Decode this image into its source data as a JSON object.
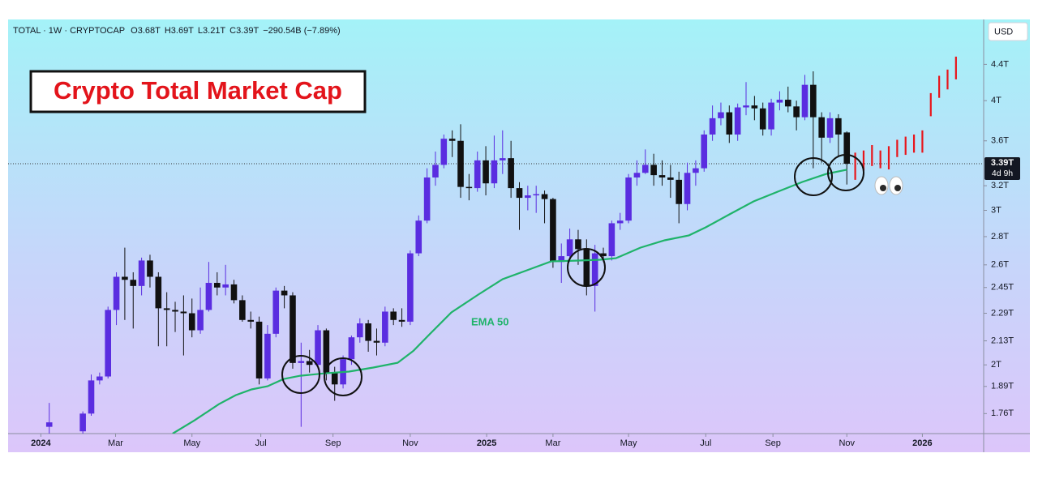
{
  "chart_data": {
    "type": "candlestick",
    "title": "Crypto Total Market Cap",
    "header": [
      "TOTAL · 1W · CRYPTOCAP",
      "O3.68T",
      "H3.69T",
      "L3.21T",
      "C3.39T",
      "−290.54B (−7.89%)"
    ],
    "currency": "USD",
    "up_color": "#5a2de0",
    "down_color": "#111111",
    "log": true,
    "ylim": [
      1.67,
      4.95
    ],
    "yticks": [
      {
        "value": 1.76,
        "label": "1.76T"
      },
      {
        "value": 1.89,
        "label": "1.89T"
      },
      {
        "value": 2,
        "label": "2T"
      },
      {
        "value": 2.13,
        "label": "2.13T"
      },
      {
        "value": 2.29,
        "label": "2.29T"
      },
      {
        "value": 2.45,
        "label": "2.45T"
      },
      {
        "value": 2.6,
        "label": "2.6T"
      },
      {
        "value": 2.8,
        "label": "2.8T"
      },
      {
        "value": 3,
        "label": "3T"
      },
      {
        "value": 3.2,
        "label": "3.2T"
      },
      {
        "value": 3.6,
        "label": "3.6T"
      },
      {
        "value": 4,
        "label": "4T"
      },
      {
        "value": 4.4,
        "label": "4.4T"
      }
    ],
    "xlim": [
      -3.9,
      112.3
    ],
    "xticks": [
      {
        "value": 0,
        "label": "2024"
      },
      {
        "value": 8.9,
        "label": "Mar"
      },
      {
        "value": 18.0,
        "label": "May"
      },
      {
        "value": 26.2,
        "label": "Jul"
      },
      {
        "value": 34.8,
        "label": "Sep"
      },
      {
        "value": 44.0,
        "label": "Nov"
      },
      {
        "value": 53.1,
        "label": "2025"
      },
      {
        "value": 61.0,
        "label": "Mar"
      },
      {
        "value": 70.0,
        "label": "May"
      },
      {
        "value": 79.2,
        "label": "Jul"
      },
      {
        "value": 87.2,
        "label": "Sep"
      },
      {
        "value": 96.0,
        "label": "Nov"
      },
      {
        "value": 105.0,
        "label": "2026"
      }
    ],
    "x": [
      1,
      5,
      6,
      7,
      8,
      9,
      10,
      11,
      12,
      13,
      14,
      15,
      16,
      17,
      18,
      19,
      20,
      21,
      22,
      23,
      24,
      25,
      26,
      27,
      28,
      29,
      30,
      31,
      32,
      33,
      34,
      35,
      36,
      37,
      38,
      39,
      40,
      41,
      42,
      43,
      44,
      45,
      46,
      47,
      48,
      49,
      50,
      51,
      52,
      53,
      54,
      55,
      56,
      57,
      58,
      59,
      60,
      61,
      62,
      63,
      64,
      65,
      66,
      67,
      68,
      69,
      70,
      71,
      72,
      73,
      74,
      75,
      76,
      77,
      78,
      79,
      80,
      81,
      82,
      83,
      84,
      85,
      86,
      87,
      88,
      89,
      90,
      91,
      92,
      93,
      94,
      95,
      96
    ],
    "open": [
      1.7,
      1.68,
      1.76,
      1.92,
      1.94,
      2.31,
      2.52,
      2.5,
      2.46,
      2.63,
      2.52,
      2.32,
      2.31,
      2.3,
      2.29,
      2.19,
      2.31,
      2.48,
      2.45,
      2.47,
      2.37,
      2.25,
      2.24,
      1.93,
      2.17,
      2.43,
      2.4,
      2.01,
      2.02,
      2.0,
      2.19,
      1.96,
      1.9,
      2.03,
      2.15,
      2.23,
      2.13,
      2.12,
      2.3,
      2.25,
      2.24,
      2.68,
      2.92,
      3.27,
      3.38,
      3.62,
      3.6,
      3.19,
      3.18,
      3.42,
      3.22,
      3.42,
      3.44,
      3.18,
      3.1,
      3.12,
      3.13,
      3.09,
      2.62,
      2.66,
      2.78,
      2.71,
      2.46,
      2.68,
      2.66,
      2.9,
      2.92,
      3.27,
      3.31,
      3.38,
      3.29,
      3.27,
      3.25,
      3.05,
      3.31,
      3.35,
      3.66,
      3.82,
      3.88,
      3.66,
      3.93,
      3.95,
      3.92,
      3.71,
      3.98,
      4.01,
      3.94,
      3.83,
      4.17,
      3.83,
      3.63,
      3.82,
      3.68
    ],
    "high": [
      1.81,
      1.77,
      1.95,
      1.96,
      2.33,
      2.55,
      2.72,
      2.55,
      2.65,
      2.67,
      2.55,
      2.42,
      2.36,
      2.4,
      2.38,
      2.45,
      2.62,
      2.55,
      2.6,
      2.5,
      2.4,
      2.3,
      2.27,
      2.22,
      2.45,
      2.46,
      2.42,
      2.12,
      2.08,
      2.22,
      2.2,
      1.99,
      2.05,
      2.16,
      2.26,
      2.25,
      2.2,
      2.33,
      2.32,
      2.32,
      2.7,
      2.96,
      3.35,
      3.5,
      3.66,
      3.7,
      3.76,
      3.3,
      3.5,
      3.55,
      3.65,
      3.7,
      3.6,
      3.23,
      3.2,
      3.2,
      3.16,
      3.1,
      2.75,
      2.86,
      2.85,
      2.78,
      2.74,
      2.72,
      2.92,
      2.98,
      3.3,
      3.42,
      3.52,
      3.48,
      3.42,
      3.38,
      3.32,
      3.4,
      3.42,
      3.7,
      3.95,
      3.98,
      3.95,
      3.97,
      4.2,
      4.05,
      3.98,
      4.02,
      4.1,
      4.15,
      4.0,
      4.28,
      4.32,
      3.88,
      3.88,
      3.86,
      3.69
    ],
    "low": [
      1.66,
      1.66,
      1.75,
      1.9,
      1.93,
      2.22,
      2.25,
      2.2,
      2.4,
      2.45,
      2.1,
      2.1,
      2.18,
      2.05,
      2.15,
      2.17,
      2.3,
      2.4,
      2.4,
      2.35,
      2.24,
      2.2,
      1.9,
      1.92,
      2.15,
      2.32,
      1.98,
      1.7,
      1.96,
      1.99,
      1.92,
      1.82,
      1.88,
      2.0,
      2.12,
      2.07,
      2.05,
      2.1,
      2.22,
      2.21,
      2.22,
      2.66,
      2.9,
      3.2,
      3.35,
      3.45,
      3.1,
      3.08,
      3.15,
      3.12,
      3.18,
      3.3,
      3.1,
      2.85,
      3.0,
      2.98,
      2.9,
      2.58,
      2.48,
      2.62,
      2.6,
      2.4,
      2.3,
      2.62,
      2.63,
      2.85,
      2.9,
      3.2,
      3.3,
      3.2,
      3.2,
      3.1,
      2.9,
      3.0,
      3.2,
      3.32,
      3.6,
      3.75,
      3.58,
      3.6,
      3.85,
      3.8,
      3.65,
      3.65,
      3.9,
      3.88,
      3.7,
      3.8,
      3.35,
      3.4,
      3.58,
      3.45,
      3.21
    ],
    "close": [
      1.72,
      1.76,
      1.92,
      1.94,
      2.31,
      2.52,
      2.5,
      2.46,
      2.63,
      2.52,
      2.32,
      2.31,
      2.3,
      2.29,
      2.19,
      2.31,
      2.48,
      2.45,
      2.47,
      2.37,
      2.25,
      2.24,
      1.93,
      2.17,
      2.43,
      2.4,
      2.01,
      2.02,
      2.0,
      2.19,
      1.96,
      1.9,
      2.03,
      2.15,
      2.23,
      2.13,
      2.12,
      2.3,
      2.25,
      2.24,
      2.68,
      2.92,
      3.27,
      3.38,
      3.62,
      3.6,
      3.19,
      3.18,
      3.42,
      3.22,
      3.42,
      3.44,
      3.18,
      3.1,
      3.12,
      3.13,
      3.09,
      2.62,
      2.66,
      2.78,
      2.71,
      2.46,
      2.68,
      2.66,
      2.9,
      2.92,
      3.27,
      3.31,
      3.38,
      3.29,
      3.27,
      3.25,
      3.05,
      3.31,
      3.35,
      3.66,
      3.82,
      3.88,
      3.66,
      3.93,
      3.95,
      3.92,
      3.71,
      3.98,
      4.01,
      3.94,
      3.83,
      4.17,
      3.83,
      3.63,
      3.82,
      3.66,
      3.39
    ],
    "ema": {
      "name": "EMA 50",
      "color": "#1fb36a",
      "x": [
        15.7,
        18.3,
        21.2,
        23.2,
        25.1,
        27.0,
        28.9,
        30.9,
        33.8,
        36.7,
        39.6,
        42.5,
        44.4,
        46.3,
        48.9,
        52.1,
        55.0,
        57.9,
        60.8,
        63.7,
        66.6,
        68.5,
        71.4,
        74.3,
        77.2,
        79.2,
        82.0,
        84.9,
        87.8,
        90.7,
        93.6,
        96.0
      ],
      "values": [
        1.67,
        1.729,
        1.804,
        1.847,
        1.875,
        1.891,
        1.927,
        1.944,
        1.956,
        1.965,
        1.986,
        2.011,
        2.076,
        2.167,
        2.295,
        2.405,
        2.504,
        2.563,
        2.624,
        2.629,
        2.635,
        2.646,
        2.72,
        2.773,
        2.809,
        2.869,
        2.968,
        3.071,
        3.151,
        3.232,
        3.302,
        3.337
      ]
    },
    "projection": {
      "color": "#e8151b",
      "x": [
        97,
        98,
        99,
        100,
        101,
        102,
        103,
        104,
        105,
        106,
        107,
        108,
        109
      ],
      "low": [
        3.25,
        3.33,
        3.37,
        3.35,
        3.34,
        3.45,
        3.47,
        3.49,
        3.49,
        3.84,
        4.03,
        4.12,
        4.23
      ],
      "high": [
        3.49,
        3.51,
        3.56,
        3.51,
        3.55,
        3.61,
        3.64,
        3.66,
        3.7,
        4.08,
        4.27,
        4.34,
        4.49
      ]
    },
    "last_price": {
      "value": 3.39,
      "label": "3.39T"
    },
    "countdown": "4d 9h"
  }
}
